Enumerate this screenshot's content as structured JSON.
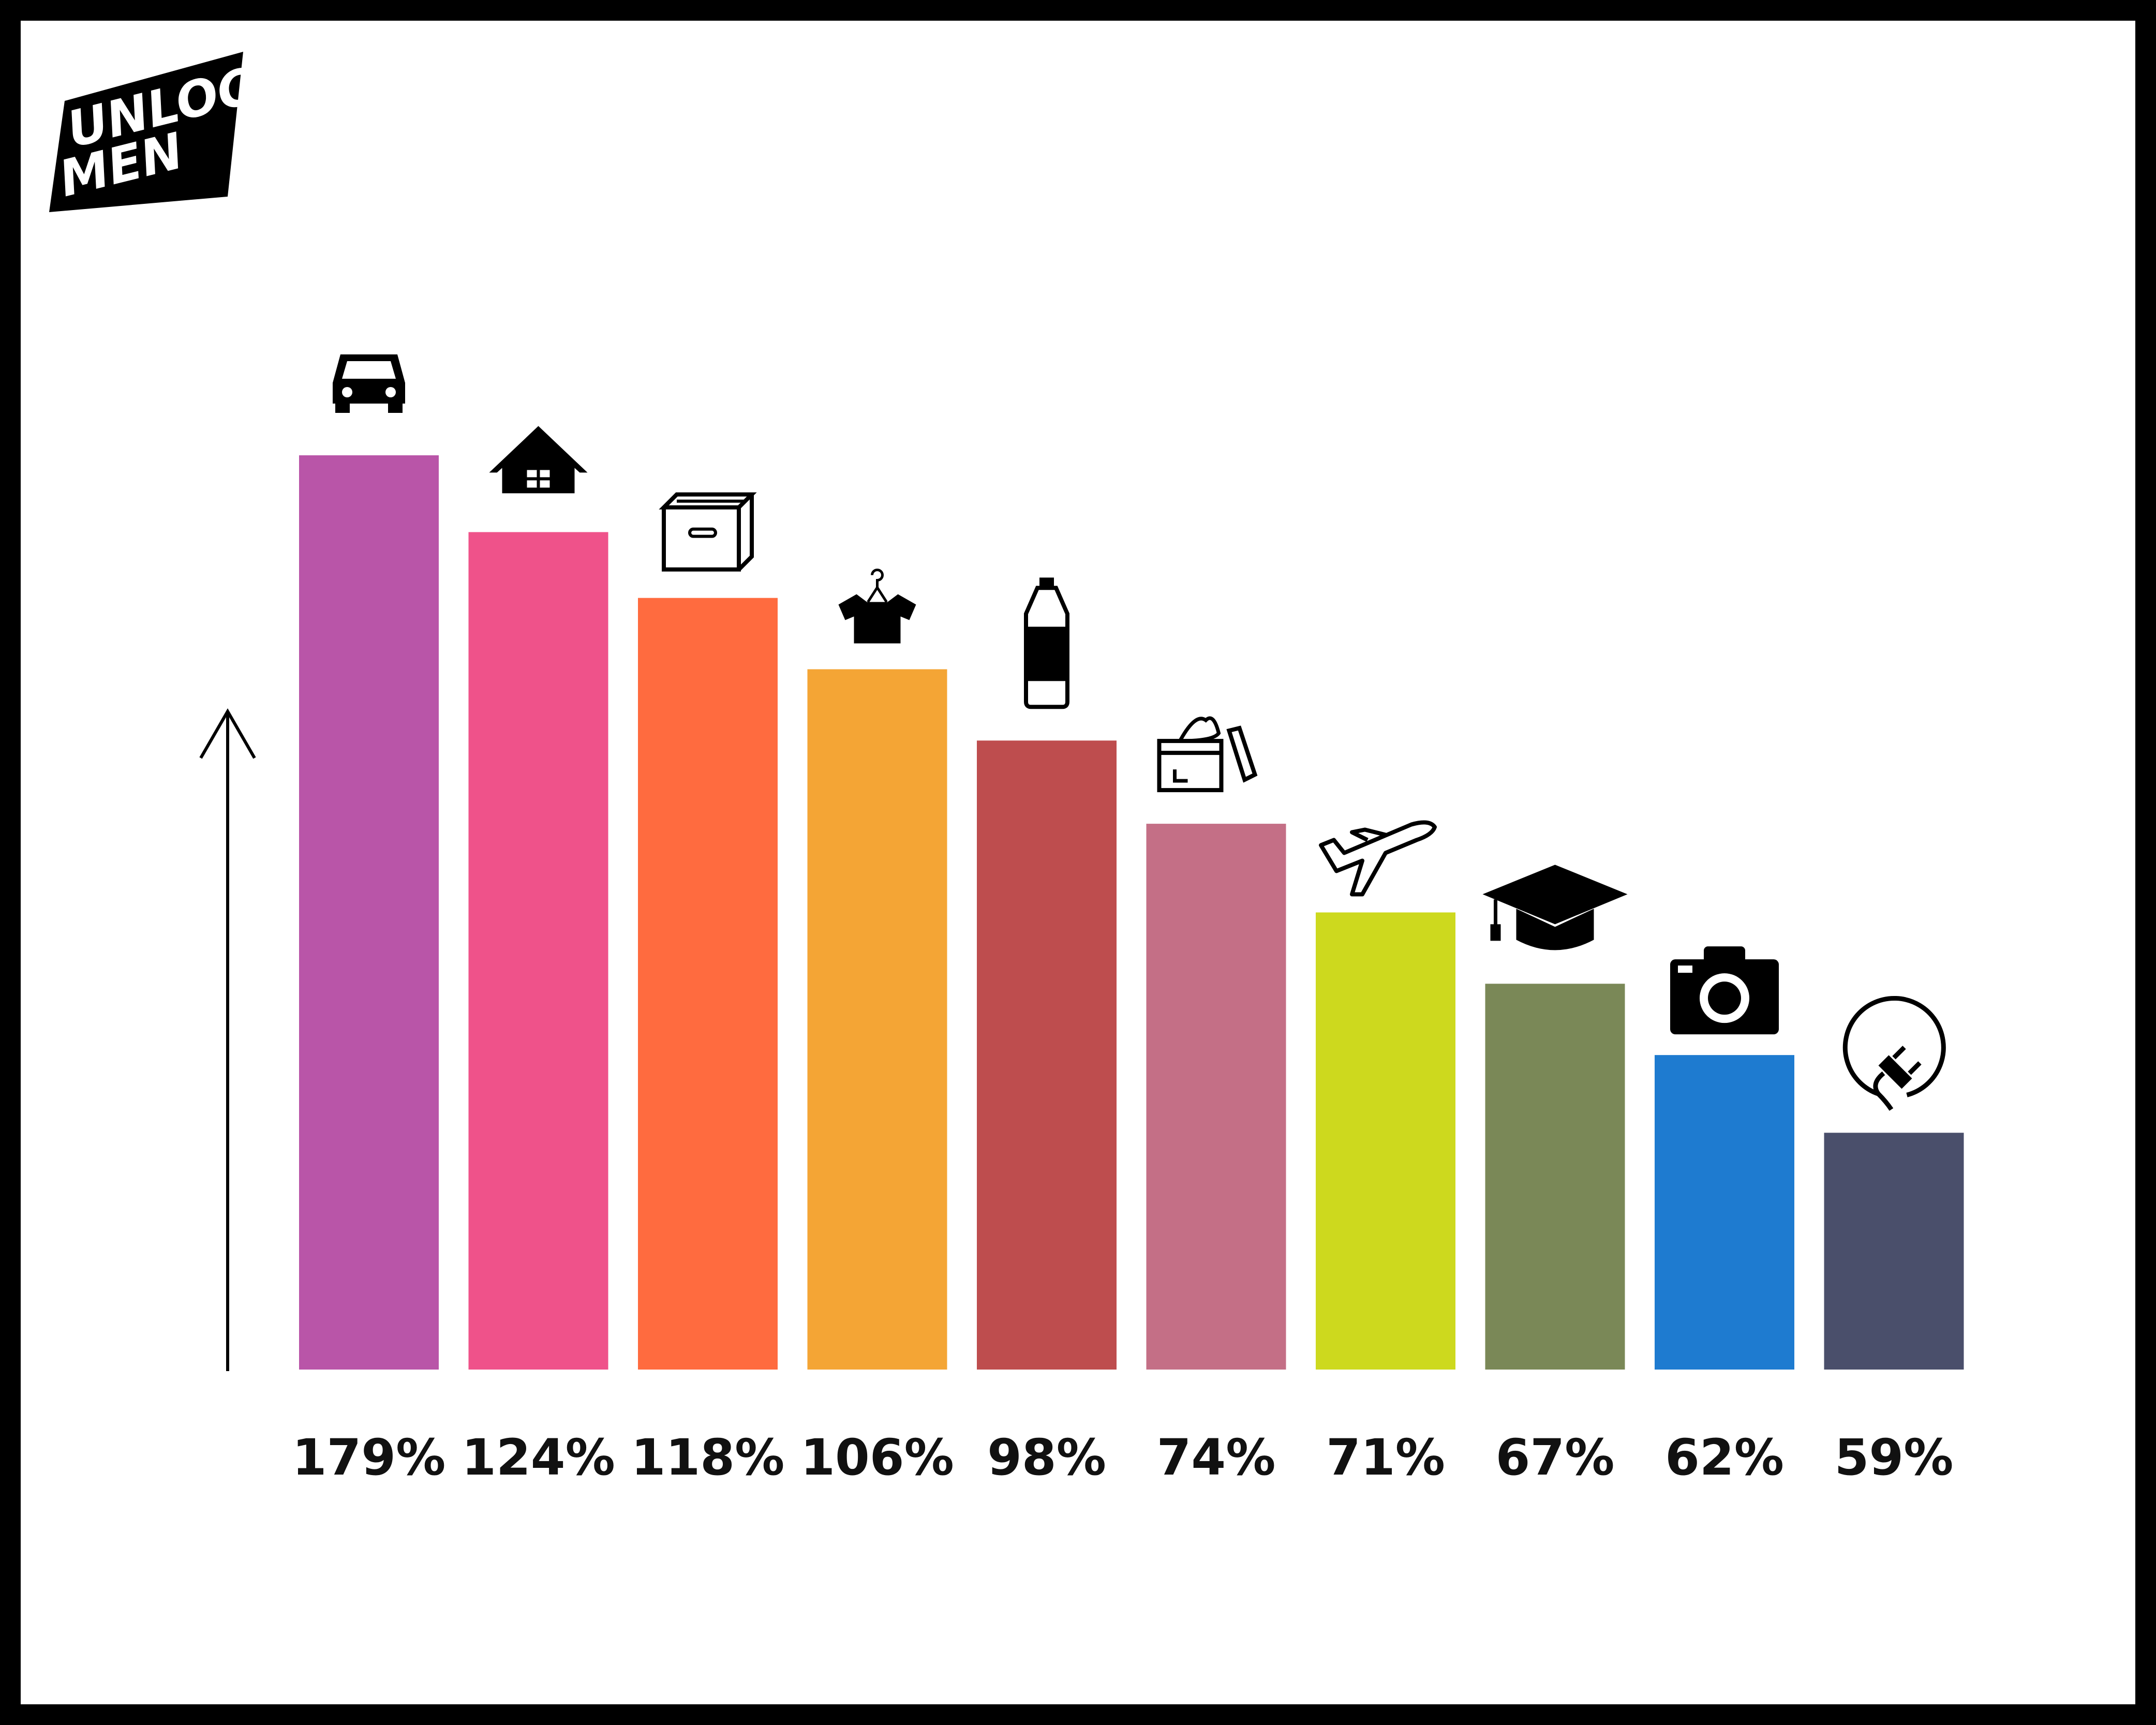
{
  "logo": {
    "line1": "UNLOCK",
    "line2": "MEN"
  },
  "chart_data": {
    "type": "bar",
    "categories": [
      "car",
      "house",
      "box",
      "t-shirt",
      "bottle",
      "cosmetics",
      "airplane",
      "graduation-cap",
      "camera",
      "electric-plug"
    ],
    "icons": [
      "car-icon",
      "house-icon",
      "box-icon",
      "tshirt-icon",
      "bottle-icon",
      "cosmetics-icon",
      "airplane-icon",
      "graduation-cap-icon",
      "camera-icon",
      "plug-icon"
    ],
    "values": [
      179,
      124,
      118,
      106,
      98,
      74,
      71,
      67,
      62,
      59
    ],
    "labels": [
      "179%",
      "124%",
      "118%",
      "106%",
      "98%",
      "74%",
      "71%",
      "67%",
      "62%",
      "59%"
    ],
    "colors": [
      "#B955A8",
      "#EF528A",
      "#FF6B3F",
      "#F4A535",
      "#BE4D4E",
      "#C46F86",
      "#CDD91E",
      "#7A8857",
      "#1E7BD0",
      "#4A4F6B"
    ],
    "heights_pct": [
      100,
      91.6,
      84.4,
      76.6,
      68.8,
      59.7,
      50.0,
      42.2,
      34.4,
      25.9
    ],
    "title": "",
    "xlabel": "",
    "ylabel": "",
    "axis": "y-arrow",
    "grid": false,
    "legend": "none"
  }
}
